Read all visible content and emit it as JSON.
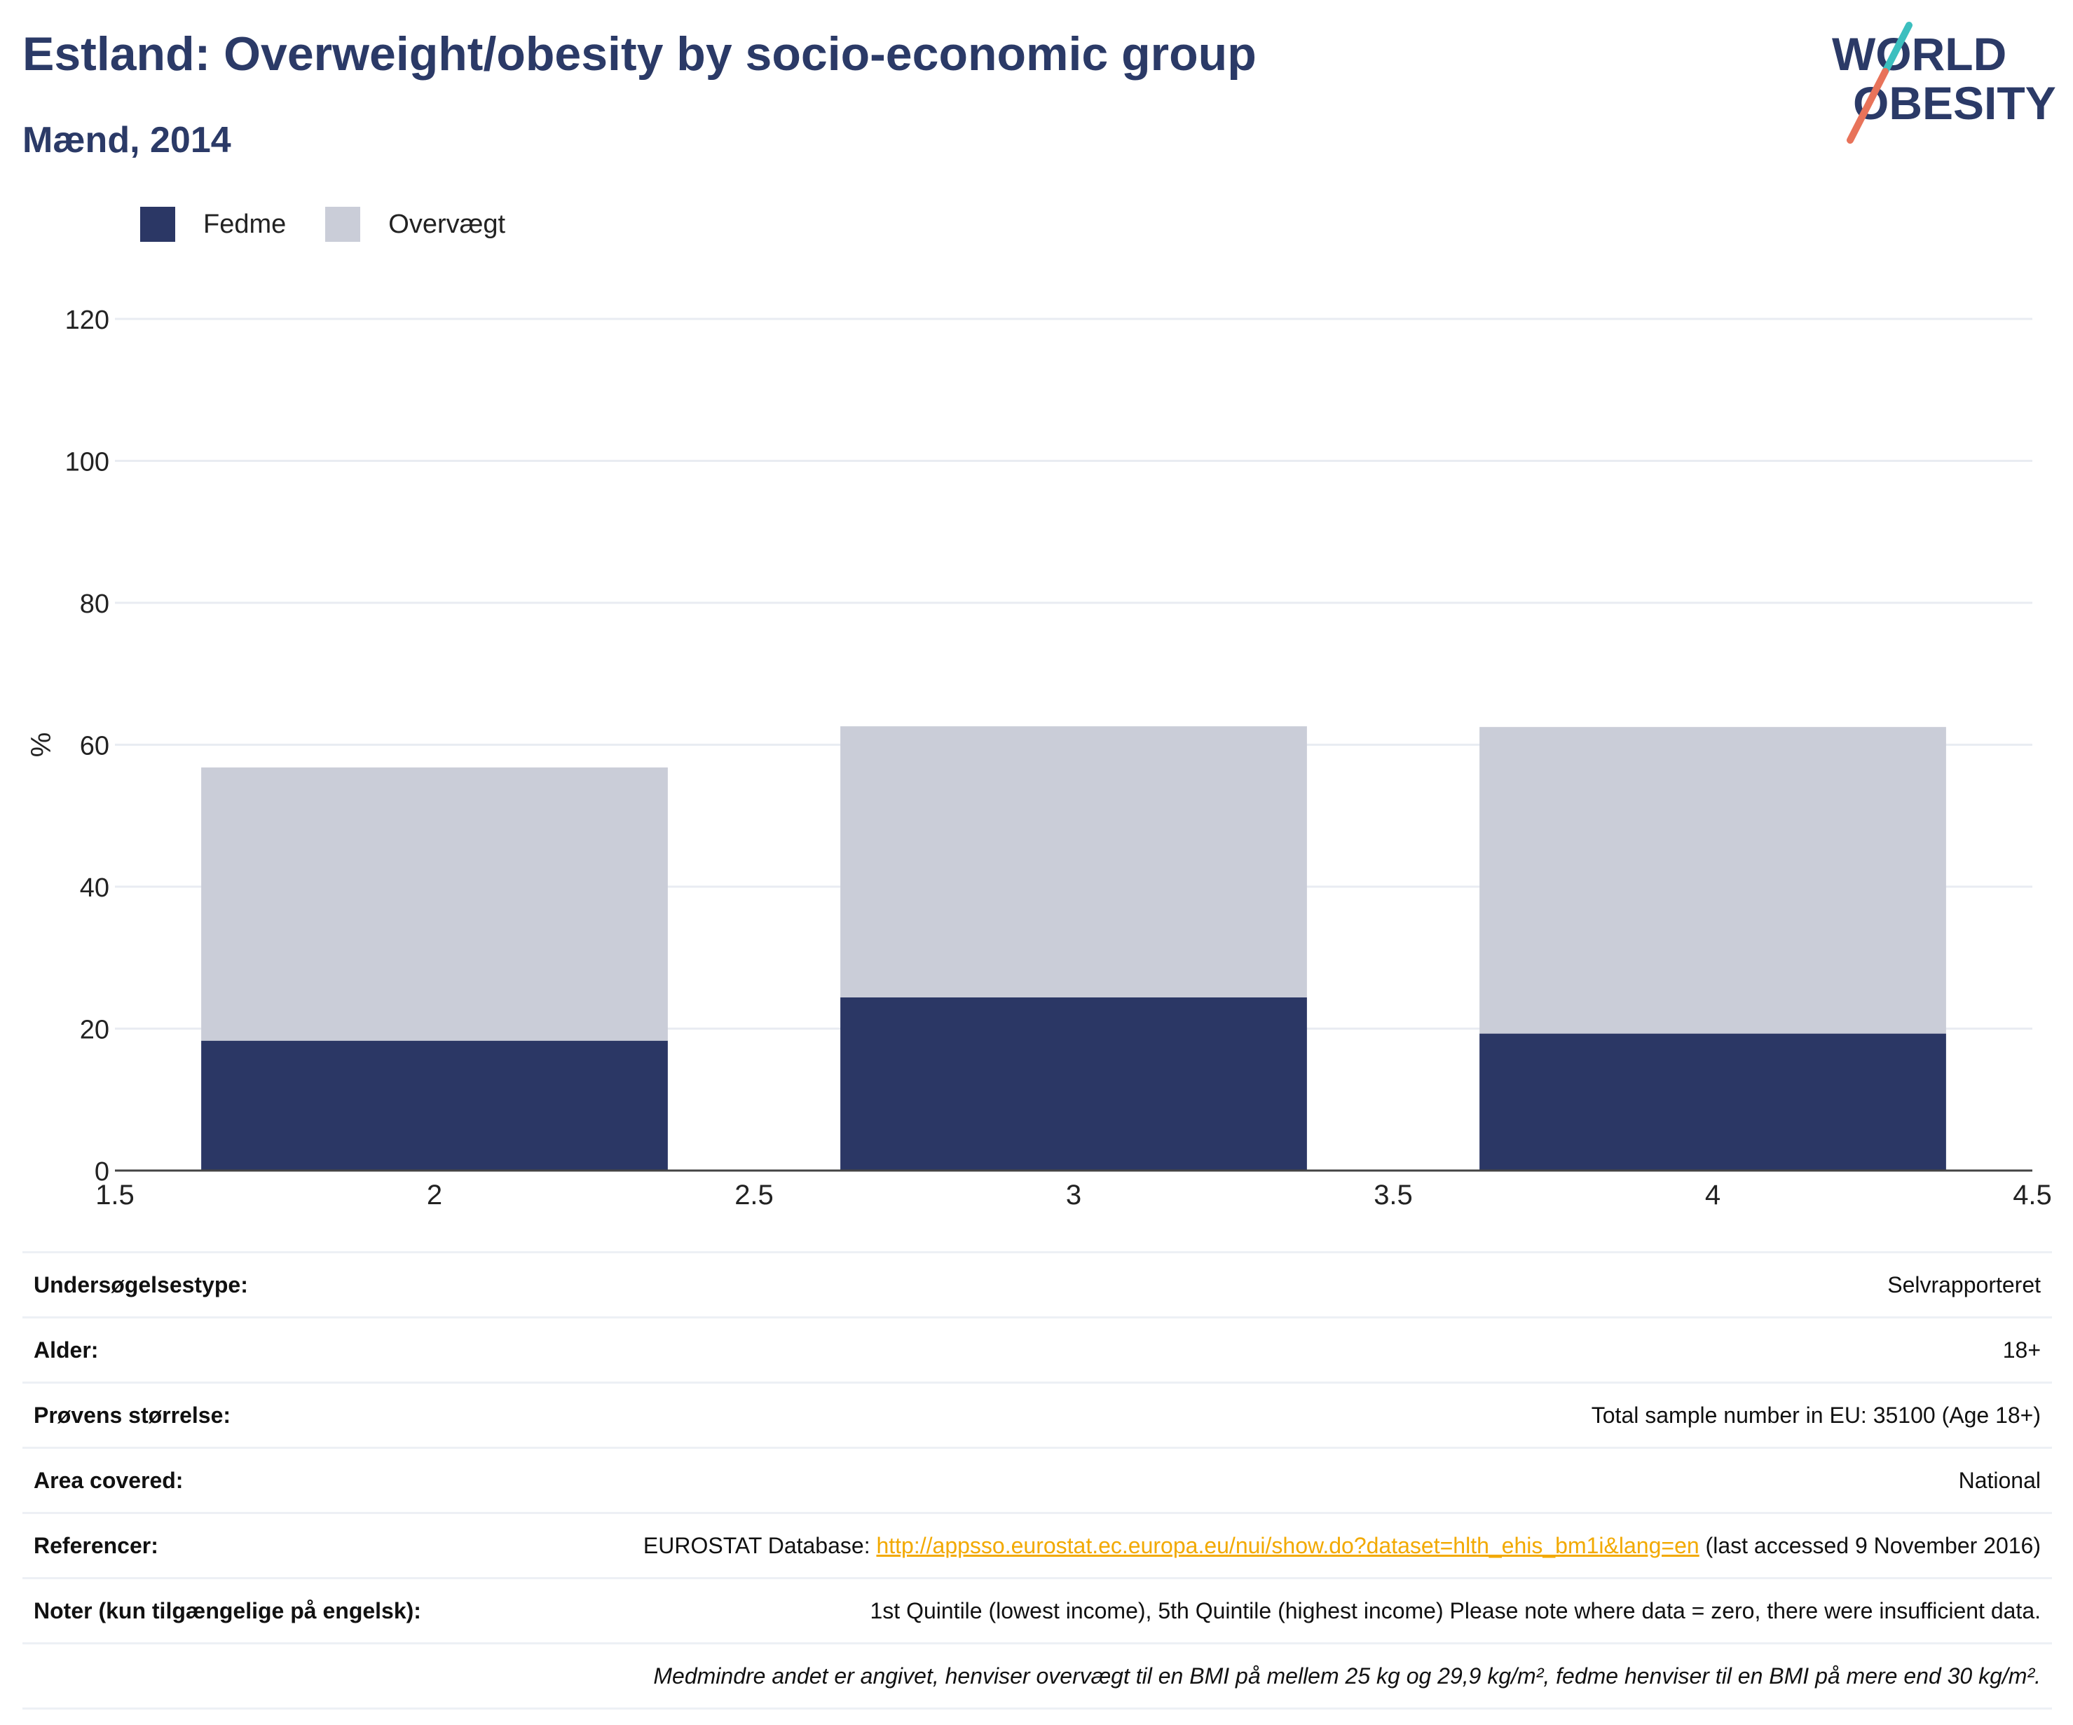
{
  "header": {
    "title": "Estland: Overweight/obesity by socio-economic group",
    "subtitle": "Mænd, 2014"
  },
  "logo": {
    "line1": "WORLD",
    "line2": "OBESITY",
    "colors": {
      "navy": "#2b3a67",
      "teal": "#3cbfbf",
      "coral": "#e8735a"
    }
  },
  "legend": {
    "items": [
      {
        "label": "Fedme",
        "color": "#2b3765"
      },
      {
        "label": "Overvægt",
        "color": "#cacdd8"
      }
    ]
  },
  "chart_data": {
    "type": "bar",
    "stacked": true,
    "x": [
      2,
      3,
      4
    ],
    "series": [
      {
        "name": "Fedme",
        "color": "#2b3765",
        "values": [
          18.3,
          24.4,
          19.3
        ]
      },
      {
        "name": "Overvægt",
        "color": "#cacdd8",
        "values": [
          38.5,
          38.2,
          43.2
        ]
      }
    ],
    "xlim": [
      1.5,
      4.5
    ],
    "ylim": [
      0,
      120
    ],
    "x_ticks": [
      "1.5",
      "2",
      "2.5",
      "3",
      "3.5",
      "4",
      "4.5"
    ],
    "y_ticks": [
      "0",
      "20",
      "40",
      "60",
      "80",
      "100",
      "120"
    ],
    "ylabel": "%",
    "xlabel": "",
    "grid": true,
    "legend_position": "top-left"
  },
  "info": {
    "rows": [
      {
        "label": "Undersøgelsestype:",
        "value": "Selvrapporteret"
      },
      {
        "label": "Alder:",
        "value": "18+"
      },
      {
        "label": "Prøvens størrelse:",
        "value": "Total sample number in EU: 35100 (Age 18+)"
      },
      {
        "label": "Area covered:",
        "value": "National"
      }
    ],
    "references": {
      "label": "Referencer:",
      "prefix": "EUROSTAT Database: ",
      "link": "http://appsso.eurostat.ec.europa.eu/nui/show.do?dataset=hlth_ehis_bm1i&lang=en",
      "suffix": " (last accessed 9 November 2016)"
    },
    "notes": {
      "label": "Noter (kun tilgængelige på engelsk):",
      "value": "1st Quintile (lowest income), 5th Quintile (highest income) Please note where data = zero, there were insufficient data."
    },
    "footnote": "Medmindre andet er angivet, henviser overvægt til en BMI på mellem 25 kg og 29,9 kg/m², fedme henviser til en BMI på mere end 30 kg/m²."
  }
}
